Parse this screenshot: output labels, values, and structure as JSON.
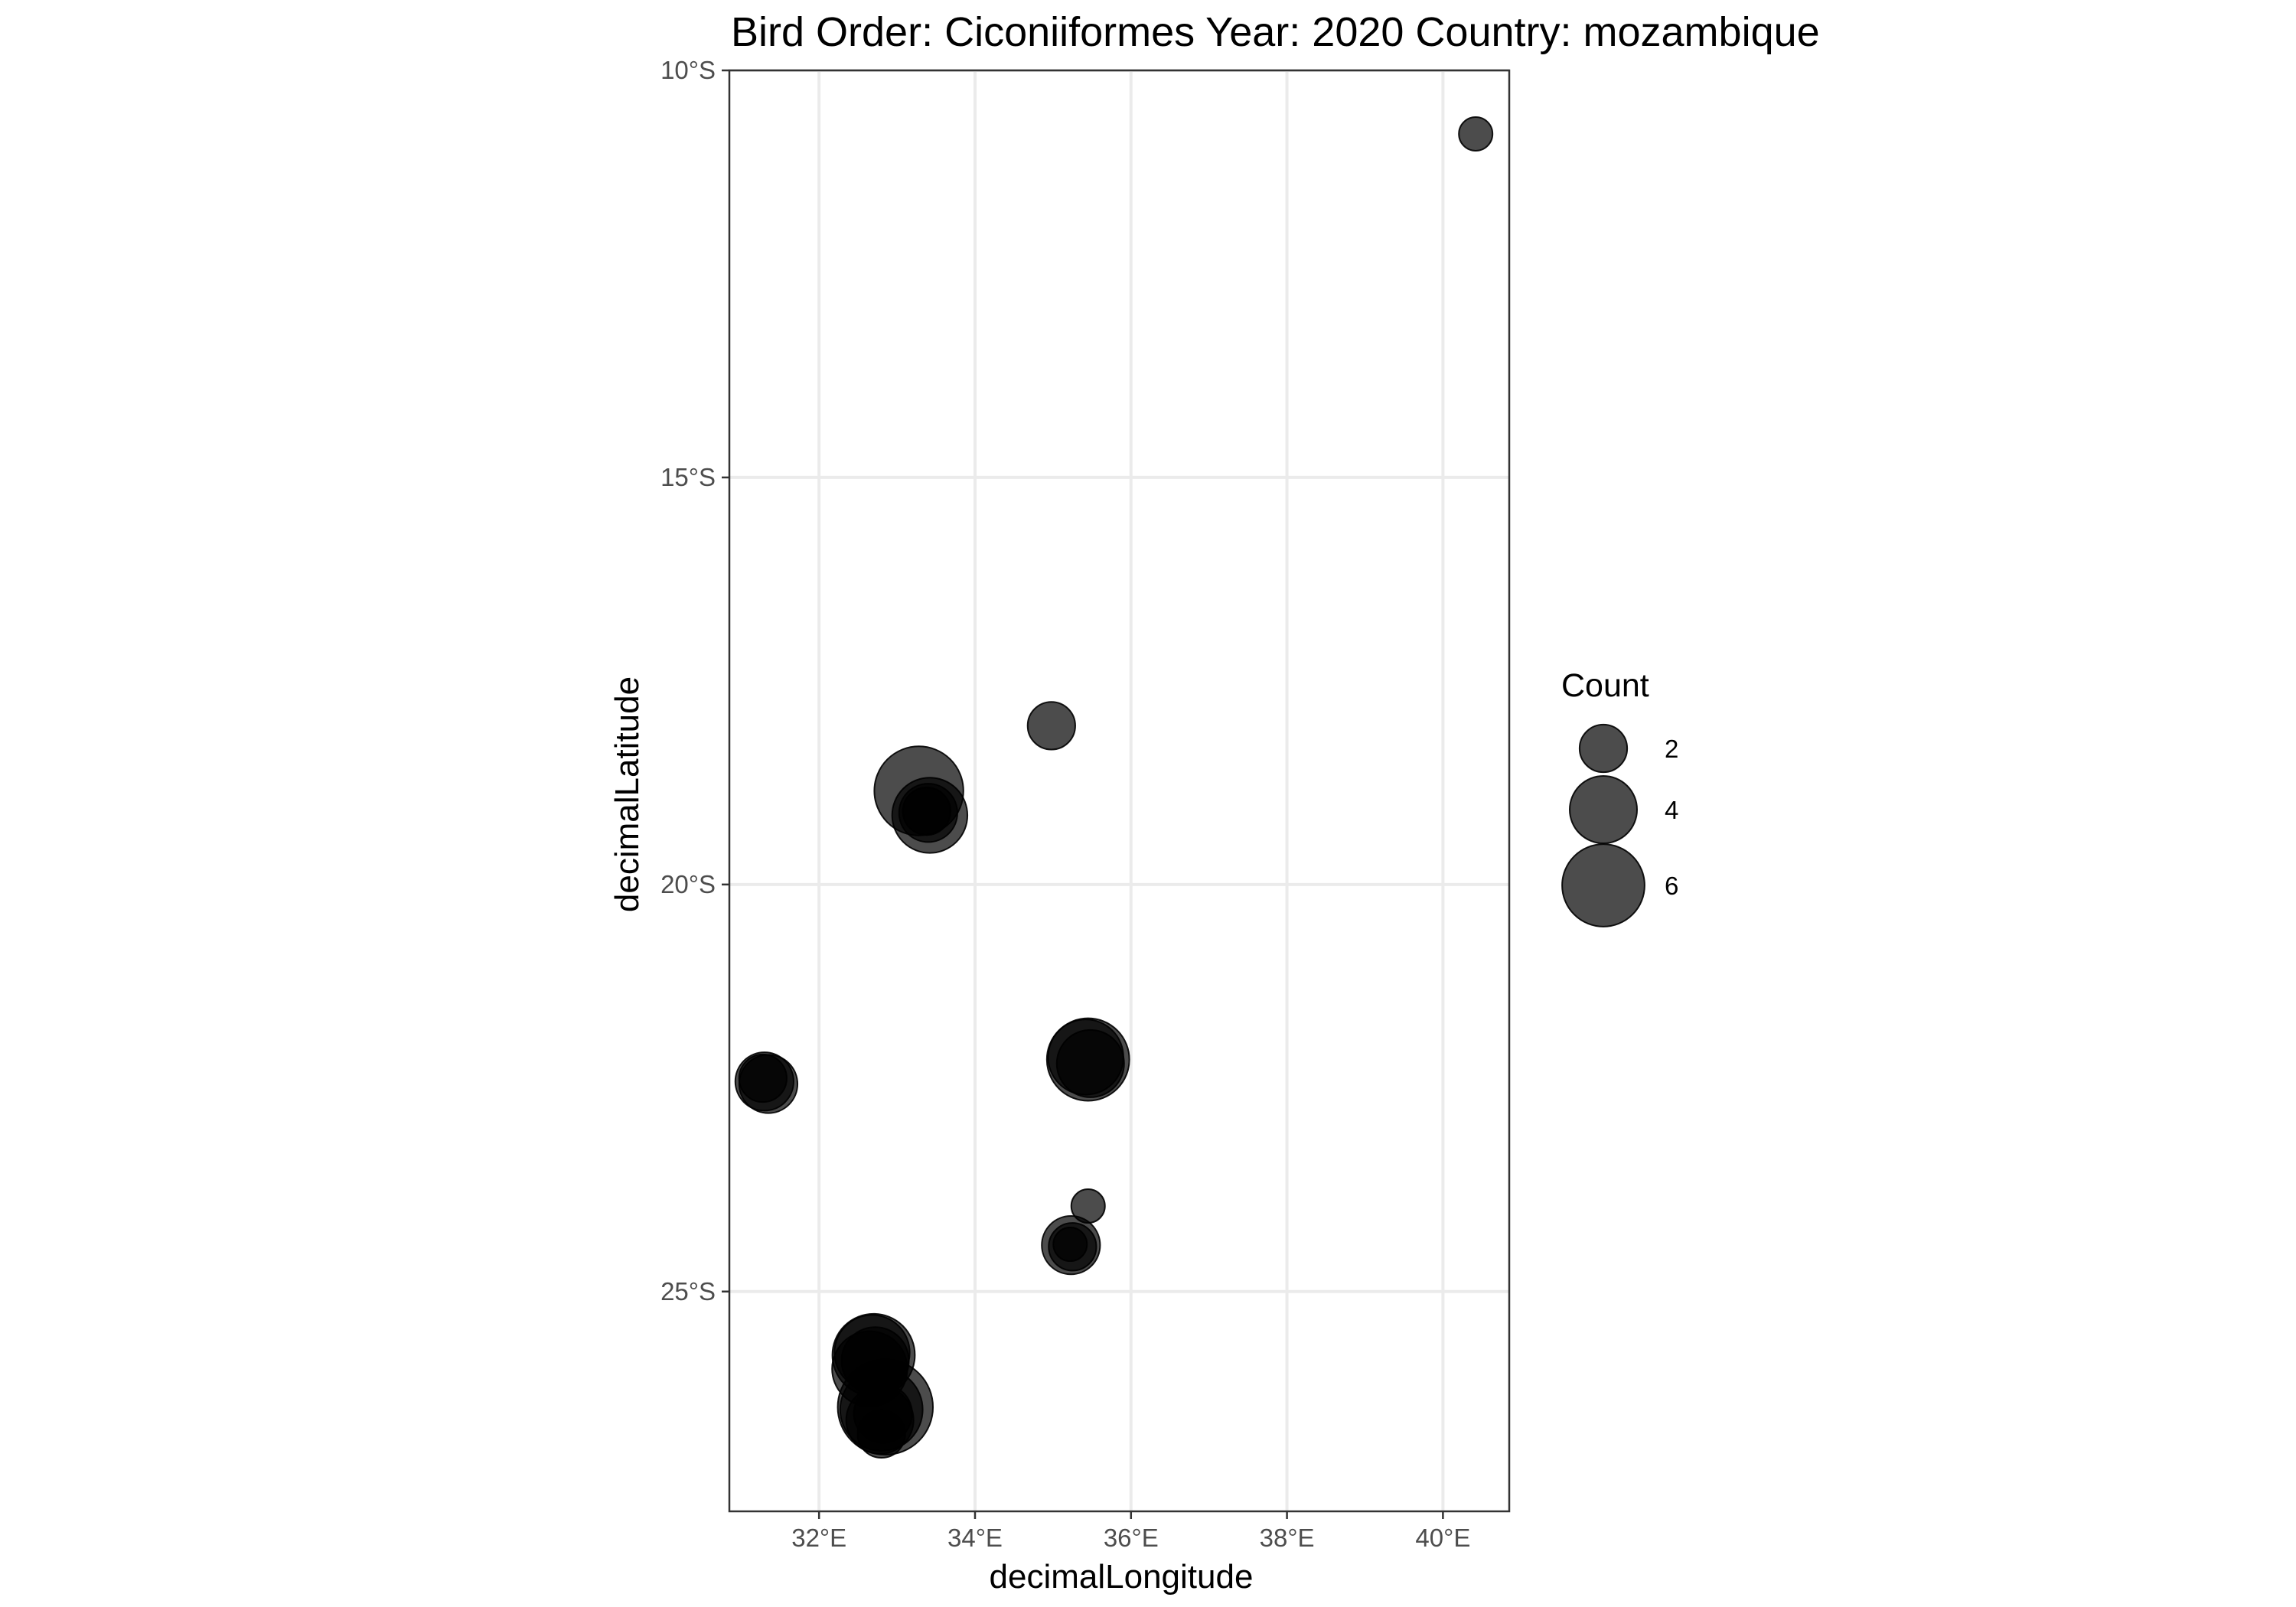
{
  "chart_data": {
    "type": "scatter",
    "title": "Bird Order: Ciconiiformes Year: 2020 Country: mozambique",
    "xlabel": "decimalLongitude",
    "ylabel": "decimalLatitude",
    "xlim": [
      30.85,
      40.85
    ],
    "ylim": [
      -27.7,
      -10
    ],
    "x_ticks": [
      {
        "value": 32,
        "label": "32°E"
      },
      {
        "value": 34,
        "label": "34°E"
      },
      {
        "value": 36,
        "label": "36°E"
      },
      {
        "value": 38,
        "label": "38°E"
      },
      {
        "value": 40,
        "label": "40°E"
      }
    ],
    "y_ticks": [
      {
        "value": -10,
        "label": "10°S"
      },
      {
        "value": -15,
        "label": "15°S"
      },
      {
        "value": -20,
        "label": "20°S"
      },
      {
        "value": -25,
        "label": "25°S"
      }
    ],
    "grid": true,
    "point_color": "#000000",
    "point_opacity": 0.7,
    "size_legend": {
      "title": "Count",
      "position": "right",
      "entries": [
        {
          "value": 2,
          "label": "2"
        },
        {
          "value": 4,
          "label": "4"
        },
        {
          "value": 6,
          "label": "6"
        }
      ]
    },
    "points": [
      {
        "x": 40.42,
        "y": -10.78,
        "count": 1
      },
      {
        "x": 34.98,
        "y": -18.05,
        "count": 2
      },
      {
        "x": 33.28,
        "y": -18.85,
        "count": 7
      },
      {
        "x": 33.42,
        "y": -19.15,
        "count": 5
      },
      {
        "x": 33.4,
        "y": -19.12,
        "count": 3
      },
      {
        "x": 33.38,
        "y": -19.1,
        "count": 2
      },
      {
        "x": 31.3,
        "y": -22.42,
        "count": 3
      },
      {
        "x": 31.35,
        "y": -22.45,
        "count": 3
      },
      {
        "x": 31.28,
        "y": -22.38,
        "count": 2
      },
      {
        "x": 35.45,
        "y": -22.15,
        "count": 6
      },
      {
        "x": 35.42,
        "y": -22.12,
        "count": 5
      },
      {
        "x": 35.48,
        "y": -22.2,
        "count": 4
      },
      {
        "x": 35.45,
        "y": -23.95,
        "count": 1
      },
      {
        "x": 35.23,
        "y": -24.43,
        "count": 3
      },
      {
        "x": 35.25,
        "y": -24.45,
        "count": 2
      },
      {
        "x": 35.22,
        "y": -24.42,
        "count": 1
      },
      {
        "x": 32.7,
        "y": -25.78,
        "count": 6
      },
      {
        "x": 32.68,
        "y": -25.75,
        "count": 5
      },
      {
        "x": 32.65,
        "y": -25.95,
        "count": 5
      },
      {
        "x": 32.72,
        "y": -25.85,
        "count": 4
      },
      {
        "x": 32.85,
        "y": -26.42,
        "count": 8
      },
      {
        "x": 32.8,
        "y": -26.45,
        "count": 6
      },
      {
        "x": 32.78,
        "y": -26.58,
        "count": 4
      },
      {
        "x": 32.82,
        "y": -26.5,
        "count": 3
      },
      {
        "x": 32.8,
        "y": -26.75,
        "count": 2
      }
    ]
  }
}
